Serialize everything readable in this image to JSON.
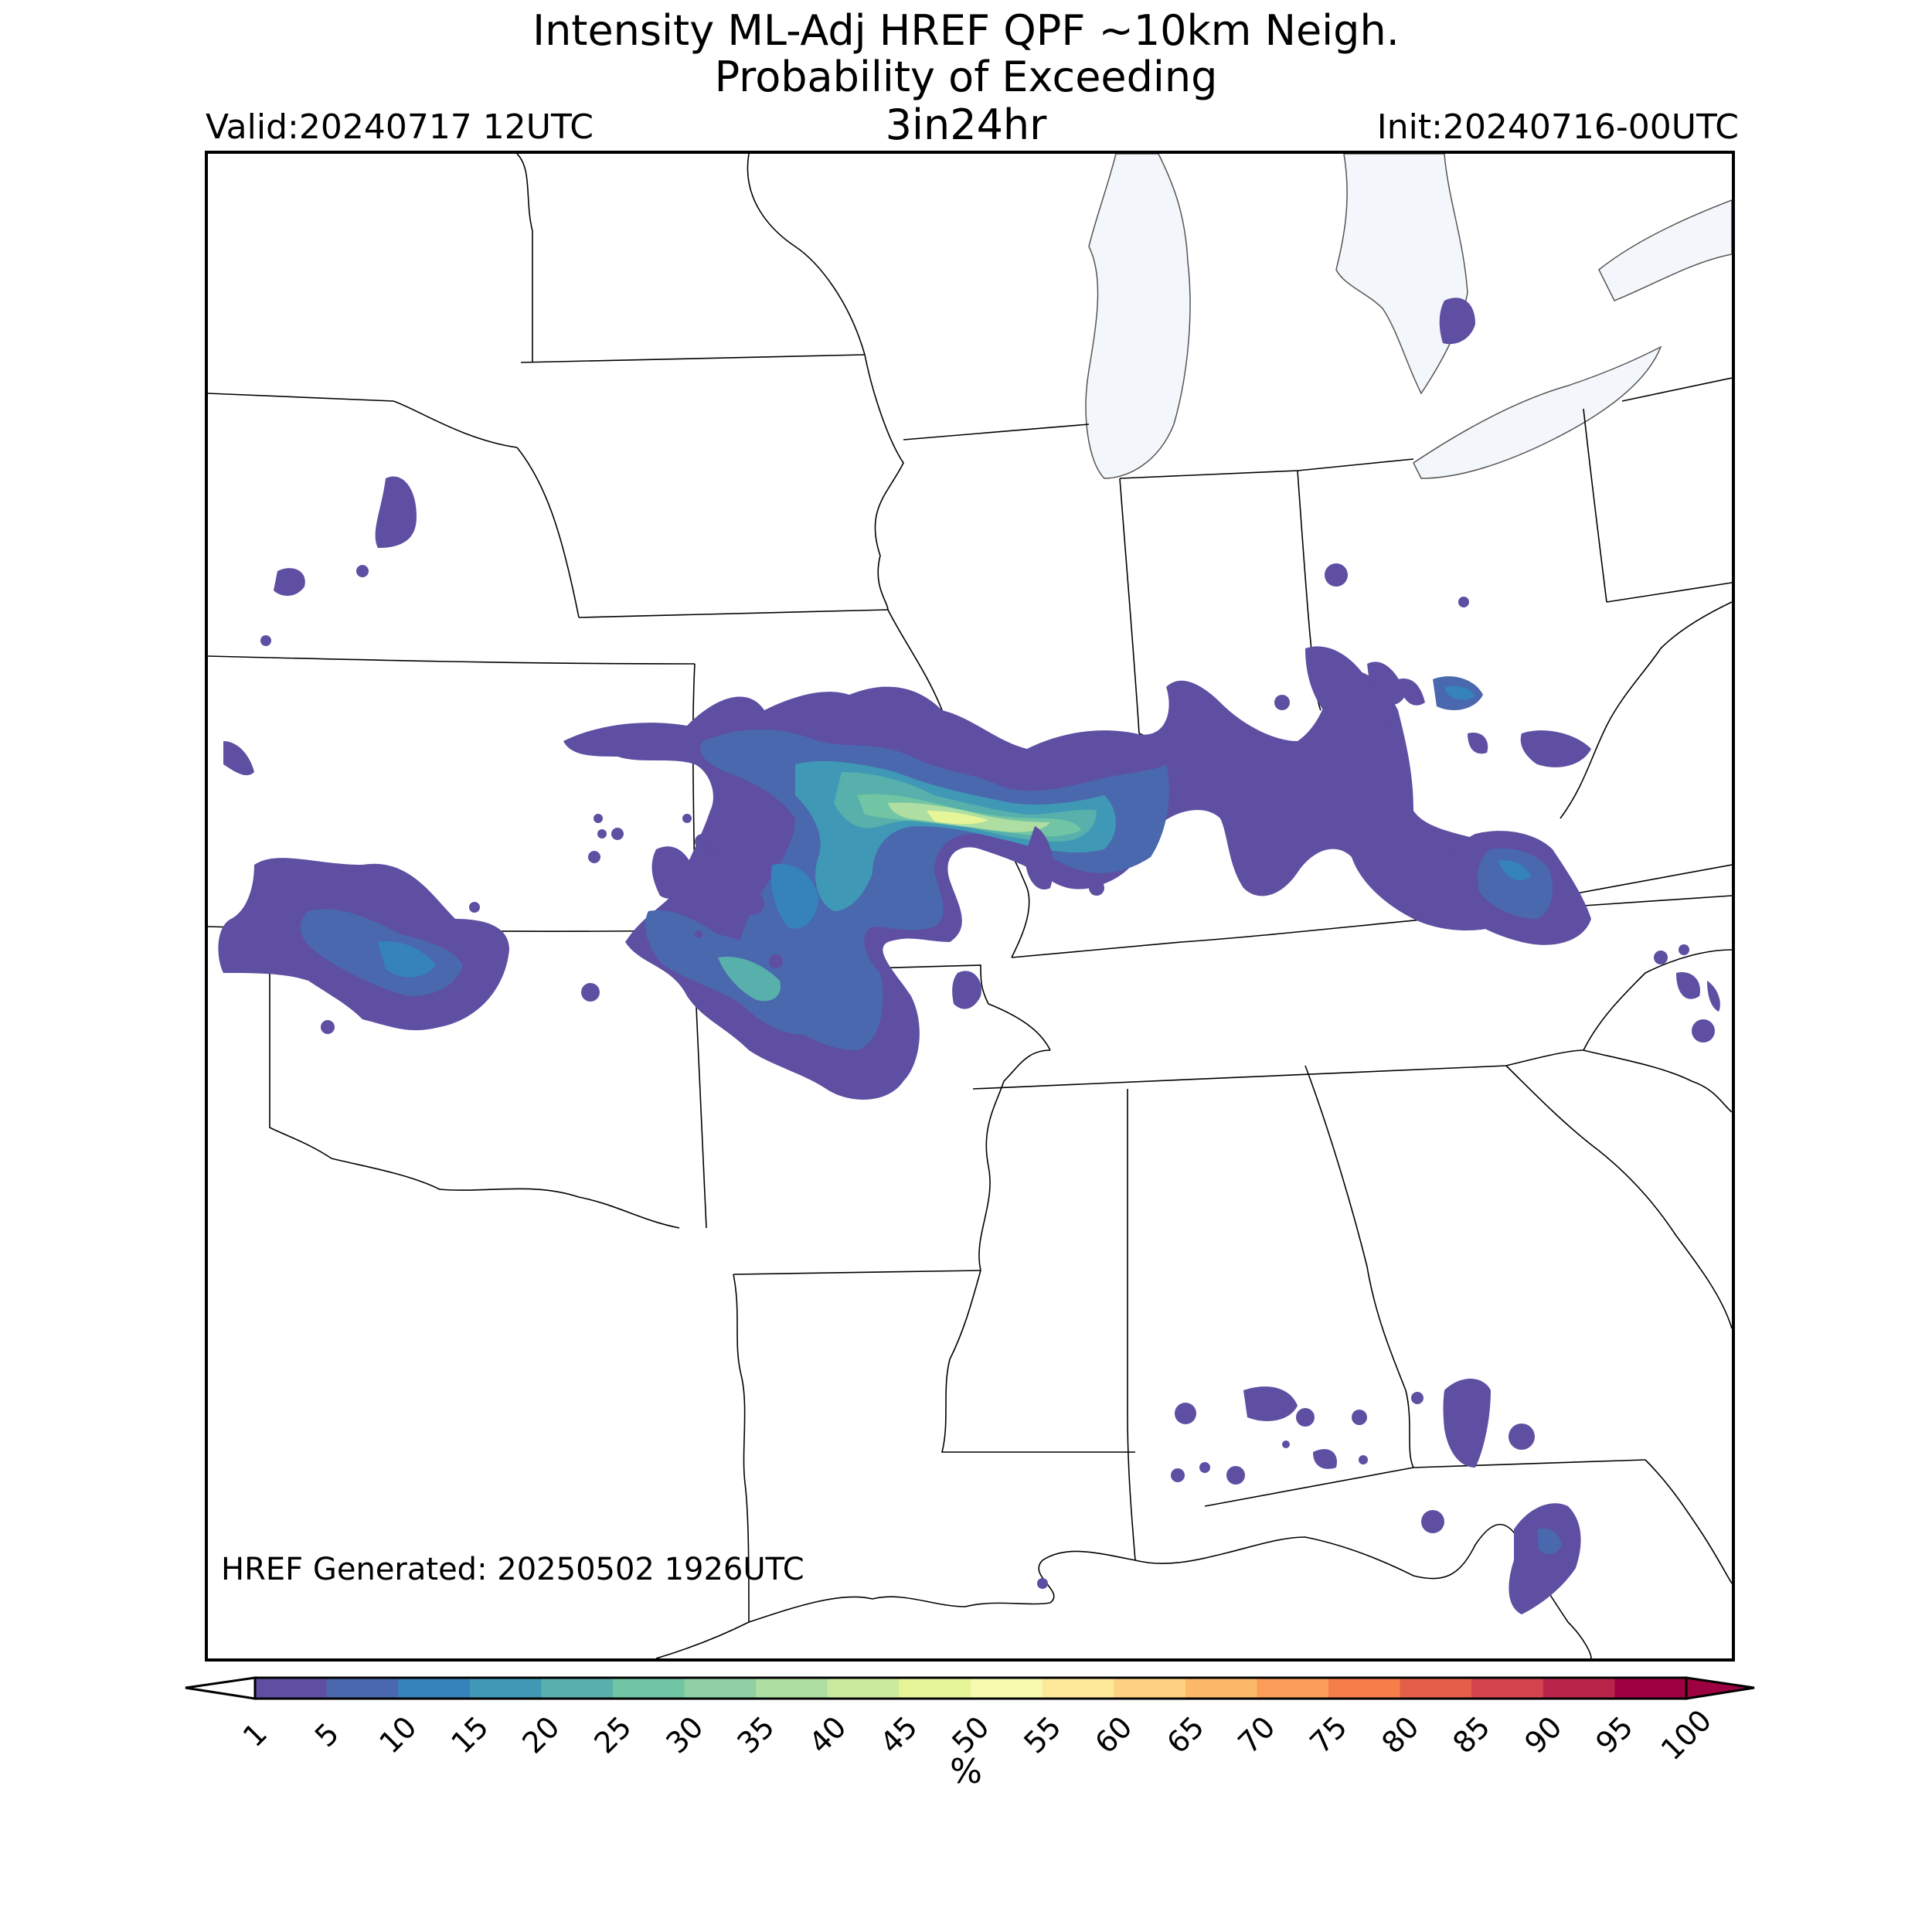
{
  "title": {
    "line1": "Intensity ML-Adj HREF QPF ~10km Neigh.",
    "line2": "Probability of Exceeding",
    "line3": "3in24hr"
  },
  "valid_label": "Valid:20240717 12UTC",
  "init_label": "Init:20240716-00UTC",
  "generated_label": "HREF Generated: 20250502 1926UTC",
  "colorbar": {
    "unit": "%",
    "ticks": [
      "1",
      "5",
      "10",
      "15",
      "20",
      "25",
      "30",
      "35",
      "40",
      "45",
      "50",
      "55",
      "60",
      "65",
      "70",
      "75",
      "80",
      "85",
      "90",
      "95",
      "100"
    ],
    "colors": [
      "#5e4fa2",
      "#4a68ad",
      "#3682ba",
      "#3f98b5",
      "#57b0ab",
      "#71c5a4",
      "#8fd1a4",
      "#aedea2",
      "#ccea9d",
      "#e6f598",
      "#f6fbaf",
      "#fee99a",
      "#fed283",
      "#fdb96a",
      "#fb9c59",
      "#f57e4b",
      "#e45e49",
      "#d2444d",
      "#b8254b",
      "#9e0142"
    ],
    "under_color": "#ffffff",
    "over_color": "#9e0142"
  },
  "map": {
    "water_color": "#f3f6fb",
    "border_color": "#000000",
    "precip_areas": [
      {
        "level": 0,
        "name": "nebraska-north"
      },
      {
        "level": 0,
        "name": "kansas-southwest"
      },
      {
        "level": 0,
        "name": "missouri-illinois-main"
      },
      {
        "level": 0,
        "name": "kentucky-west"
      },
      {
        "level": 0,
        "name": "gulf-coast"
      },
      {
        "level": 5,
        "name": "missouri-core"
      }
    ]
  }
}
